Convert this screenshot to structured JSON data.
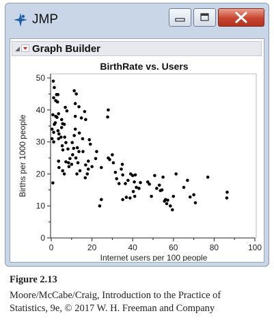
{
  "window": {
    "title": "JMP",
    "colors": {
      "frame": "#c9d6e7",
      "close_button": "#c7452f",
      "logo_blue": "#1f5fa8"
    }
  },
  "platform": {
    "title": "Graph Builder",
    "menu_icon": "red-triangle-icon",
    "disclosure_icon": "disclosure-triangle-icon"
  },
  "chart_data": {
    "type": "scatter",
    "title": "BirthRate vs. Users",
    "xlabel": "Internet users per 100 people",
    "ylabel": "Births per 1000 people",
    "xlim": [
      0,
      100
    ],
    "ylim": [
      0,
      50
    ],
    "x_ticks": [
      "0",
      "20",
      "40",
      "60",
      "80",
      "100"
    ],
    "y_ticks": [
      "0",
      "10",
      "20",
      "30",
      "40",
      "50"
    ],
    "grid": false,
    "point_color": "#000000",
    "points": [
      {
        "x": 1.0,
        "y": 49.0
      },
      {
        "x": 1.5,
        "y": 47.0
      },
      {
        "x": 1.2,
        "y": 43.8
      },
      {
        "x": 2.6,
        "y": 44.8
      },
      {
        "x": 2.2,
        "y": 42.9
      },
      {
        "x": 3.1,
        "y": 42.5
      },
      {
        "x": 3.3,
        "y": 44.8
      },
      {
        "x": 0.8,
        "y": 38.5
      },
      {
        "x": 2.2,
        "y": 38.0
      },
      {
        "x": 2.8,
        "y": 37.7
      },
      {
        "x": 3.6,
        "y": 38.8
      },
      {
        "x": 5.1,
        "y": 37.0
      },
      {
        "x": 2.0,
        "y": 36.0
      },
      {
        "x": 1.5,
        "y": 35.5
      },
      {
        "x": 0.4,
        "y": 34.0
      },
      {
        "x": 1.2,
        "y": 33.0
      },
      {
        "x": 3.3,
        "y": 33.5
      },
      {
        "x": 5.6,
        "y": 35.7
      },
      {
        "x": 5.1,
        "y": 34.5
      },
      {
        "x": 6.4,
        "y": 35.5
      },
      {
        "x": 3.8,
        "y": 32.5
      },
      {
        "x": 0.4,
        "y": 31.0
      },
      {
        "x": 1.2,
        "y": 30.0
      },
      {
        "x": 3.6,
        "y": 31.0
      },
      {
        "x": 4.8,
        "y": 31.5
      },
      {
        "x": 6.6,
        "y": 31.5
      },
      {
        "x": 5.4,
        "y": 28.8
      },
      {
        "x": 5.7,
        "y": 27.5
      },
      {
        "x": 8.2,
        "y": 27.8
      },
      {
        "x": 7.2,
        "y": 29.8
      },
      {
        "x": 6.9,
        "y": 40.8
      },
      {
        "x": 7.7,
        "y": 39.7
      },
      {
        "x": 11.3,
        "y": 46.0
      },
      {
        "x": 12.3,
        "y": 45.0
      },
      {
        "x": 11.8,
        "y": 42.0
      },
      {
        "x": 13.6,
        "y": 41.0
      },
      {
        "x": 16.4,
        "y": 39.5
      },
      {
        "x": 11.8,
        "y": 38.0
      },
      {
        "x": 14.8,
        "y": 37.5
      },
      {
        "x": 16.9,
        "y": 37.0
      },
      {
        "x": 11.8,
        "y": 34.0
      },
      {
        "x": 13.8,
        "y": 32.8
      },
      {
        "x": 11.3,
        "y": 32.0
      },
      {
        "x": 15.4,
        "y": 31.0
      },
      {
        "x": 10.3,
        "y": 29.8
      },
      {
        "x": 11.0,
        "y": 28.0
      },
      {
        "x": 12.8,
        "y": 28.2
      },
      {
        "x": 13.6,
        "y": 27.0
      },
      {
        "x": 15.6,
        "y": 27.0
      },
      {
        "x": 10.5,
        "y": 26.0
      },
      {
        "x": 12.1,
        "y": 25.0
      },
      {
        "x": 13.1,
        "y": 23.5
      },
      {
        "x": 18.7,
        "y": 30.7
      },
      {
        "x": 19.2,
        "y": 29.3
      },
      {
        "x": 16.9,
        "y": 22.8
      },
      {
        "x": 18.2,
        "y": 24.0
      },
      {
        "x": 17.7,
        "y": 20.0
      },
      {
        "x": 18.2,
        "y": 21.5
      },
      {
        "x": 16.7,
        "y": 18.8
      },
      {
        "x": 14.1,
        "y": 21.0
      },
      {
        "x": 12.6,
        "y": 20.0
      },
      {
        "x": 8.5,
        "y": 23.5
      },
      {
        "x": 8.7,
        "y": 22.3
      },
      {
        "x": 9.2,
        "y": 24.8
      },
      {
        "x": 10.0,
        "y": 23.0
      },
      {
        "x": 7.2,
        "y": 23.8
      },
      {
        "x": 3.6,
        "y": 24.0
      },
      {
        "x": 3.8,
        "y": 22.0
      },
      {
        "x": 5.6,
        "y": 21.0
      },
      {
        "x": 6.4,
        "y": 20.0
      },
      {
        "x": 0.8,
        "y": 17.2
      },
      {
        "x": 22.3,
        "y": 27.0
      },
      {
        "x": 21.8,
        "y": 24.8
      },
      {
        "x": 20.0,
        "y": 22.3
      },
      {
        "x": 24.6,
        "y": 22.0
      },
      {
        "x": 28.0,
        "y": 40.0
      },
      {
        "x": 27.7,
        "y": 37.8
      },
      {
        "x": 28.7,
        "y": 24.5
      },
      {
        "x": 28.0,
        "y": 25.0
      },
      {
        "x": 30.0,
        "y": 26.0
      },
      {
        "x": 30.5,
        "y": 23.5
      },
      {
        "x": 31.5,
        "y": 20.5
      },
      {
        "x": 32.1,
        "y": 18.5
      },
      {
        "x": 33.3,
        "y": 17.0
      },
      {
        "x": 34.9,
        "y": 23.0
      },
      {
        "x": 34.4,
        "y": 21.5
      },
      {
        "x": 35.1,
        "y": 19.7
      },
      {
        "x": 36.4,
        "y": 17.0
      },
      {
        "x": 37.7,
        "y": 18.0
      },
      {
        "x": 39.0,
        "y": 20.0
      },
      {
        "x": 40.0,
        "y": 19.5
      },
      {
        "x": 41.3,
        "y": 19.7
      },
      {
        "x": 40.8,
        "y": 17.5
      },
      {
        "x": 41.8,
        "y": 15.8
      },
      {
        "x": 43.1,
        "y": 15.5
      },
      {
        "x": 40.3,
        "y": 14.5
      },
      {
        "x": 35.1,
        "y": 12.0
      },
      {
        "x": 36.9,
        "y": 12.7
      },
      {
        "x": 38.7,
        "y": 12.5
      },
      {
        "x": 41.0,
        "y": 13.0
      },
      {
        "x": 43.8,
        "y": 17.3
      },
      {
        "x": 47.4,
        "y": 17.5
      },
      {
        "x": 48.2,
        "y": 16.8
      },
      {
        "x": 50.8,
        "y": 19.5
      },
      {
        "x": 51.8,
        "y": 15.5
      },
      {
        "x": 53.6,
        "y": 14.8
      },
      {
        "x": 53.1,
        "y": 16.5
      },
      {
        "x": 54.4,
        "y": 15.0
      },
      {
        "x": 54.9,
        "y": 19.0
      },
      {
        "x": 55.6,
        "y": 11.5
      },
      {
        "x": 56.1,
        "y": 12.0
      },
      {
        "x": 56.7,
        "y": 10.7
      },
      {
        "x": 57.2,
        "y": 11.8
      },
      {
        "x": 58.5,
        "y": 10.0
      },
      {
        "x": 59.5,
        "y": 8.8
      },
      {
        "x": 60.0,
        "y": 13.0
      },
      {
        "x": 49.2,
        "y": 13.0
      },
      {
        "x": 24.6,
        "y": 12.0
      },
      {
        "x": 23.8,
        "y": 10.0
      },
      {
        "x": 61.3,
        "y": 20.0
      },
      {
        "x": 65.1,
        "y": 15.8
      },
      {
        "x": 66.9,
        "y": 18.0
      },
      {
        "x": 68.2,
        "y": 12.8
      },
      {
        "x": 70.0,
        "y": 13.5
      },
      {
        "x": 70.8,
        "y": 11.0
      },
      {
        "x": 76.9,
        "y": 19.0
      },
      {
        "x": 86.2,
        "y": 12.5
      },
      {
        "x": 86.4,
        "y": 14.3
      }
    ]
  },
  "caption": {
    "figure_label": "Figure 2.13",
    "line2": "Moore/McCabe/Craig, Introduction to the Practice of",
    "line3": "Statistics, 9e, © 2017 W. H. Freeman and Company"
  }
}
